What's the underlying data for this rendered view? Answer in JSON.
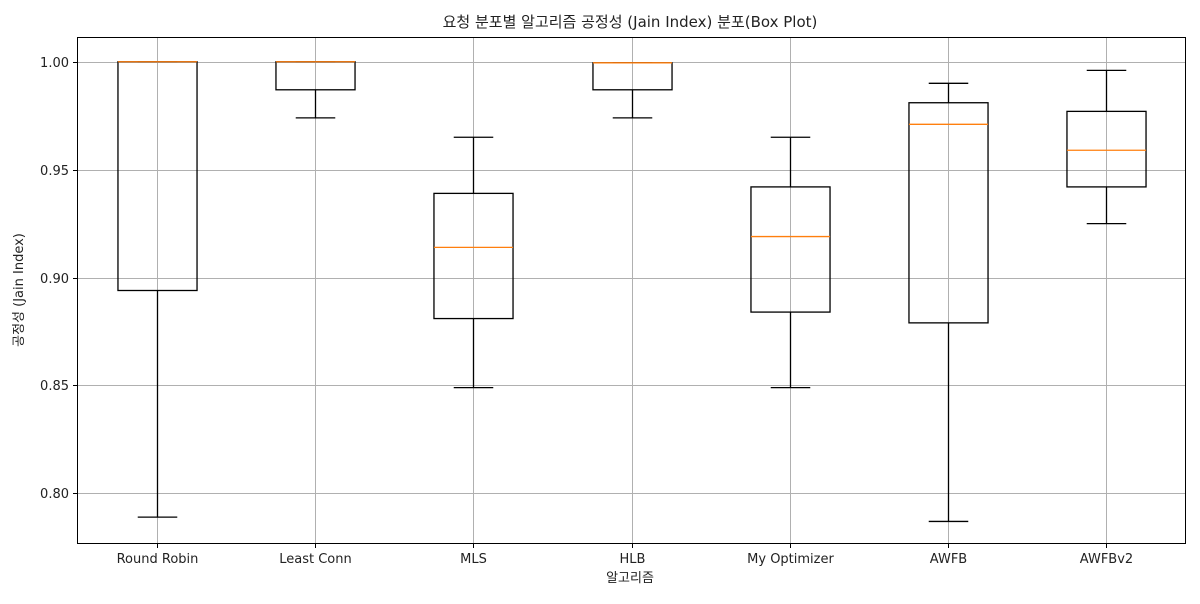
{
  "chart_data": {
    "type": "box",
    "title": "요청 분포별 알고리즘 공정성 (Jain Index) 분포(Box Plot)",
    "xlabel": "알고리즘",
    "ylabel": "공정성 (Jain Index)",
    "ylim": [
      0.777,
      1.011
    ],
    "yticks": [
      0.8,
      0.85,
      0.9,
      0.95,
      1.0
    ],
    "ytick_labels": [
      "0.80",
      "0.85",
      "0.90",
      "0.95",
      "1.00"
    ],
    "grid": true,
    "categories": [
      "Round Robin",
      "Least Conn",
      "MLS",
      "HLB",
      "My Optimizer",
      "AWFB",
      "AWFBv2"
    ],
    "boxes": [
      {
        "whisker_low": 0.789,
        "q1": 0.894,
        "median": 1.0,
        "q3": 1.0,
        "whisker_high": 1.0
      },
      {
        "whisker_low": 0.974,
        "q1": 0.987,
        "median": 1.0,
        "q3": 1.0,
        "whisker_high": 1.0
      },
      {
        "whisker_low": 0.849,
        "q1": 0.881,
        "median": 0.914,
        "q3": 0.939,
        "whisker_high": 0.965
      },
      {
        "whisker_low": 0.974,
        "q1": 0.987,
        "median": 0.9995,
        "q3": 0.9995,
        "whisker_high": 0.9995
      },
      {
        "whisker_low": 0.849,
        "q1": 0.884,
        "median": 0.919,
        "q3": 0.942,
        "whisker_high": 0.965
      },
      {
        "whisker_low": 0.787,
        "q1": 0.879,
        "median": 0.971,
        "q3": 0.981,
        "whisker_high": 0.99
      },
      {
        "whisker_low": 0.925,
        "q1": 0.942,
        "median": 0.959,
        "q3": 0.977,
        "whisker_high": 0.996
      }
    ],
    "colors": {
      "box": "#000000",
      "median": "#ff7f0e",
      "grid": "#b0b0b0",
      "axes": "#000000"
    }
  }
}
